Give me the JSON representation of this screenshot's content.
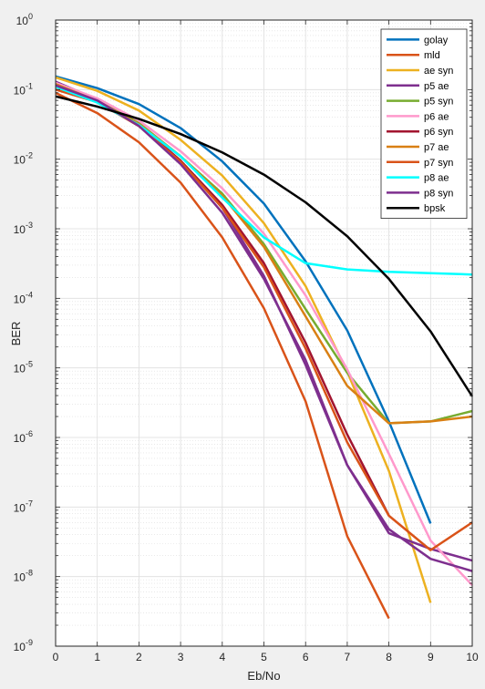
{
  "chart_data": {
    "type": "line",
    "xlabel": "Eb/No",
    "ylabel": "BER",
    "xlim": [
      0,
      10
    ],
    "ylim": [
      1e-09,
      1
    ],
    "yscale": "log",
    "grid": true,
    "minor_grid": true,
    "legend_position": "top-right",
    "x_ticks": [
      0,
      1,
      2,
      3,
      4,
      5,
      6,
      7,
      8,
      9,
      10
    ],
    "y_ticks": [
      {
        "exp": -9,
        "base": "10",
        "pow": "-9"
      },
      {
        "exp": -8,
        "base": "10",
        "pow": "-8"
      },
      {
        "exp": -7,
        "base": "10",
        "pow": "-7"
      },
      {
        "exp": -6,
        "base": "10",
        "pow": "-6"
      },
      {
        "exp": -5,
        "base": "10",
        "pow": "-5"
      },
      {
        "exp": -4,
        "base": "10",
        "pow": "-4"
      },
      {
        "exp": -3,
        "base": "10",
        "pow": "-3"
      },
      {
        "exp": -2,
        "base": "10",
        "pow": "-2"
      },
      {
        "exp": -1,
        "base": "10",
        "pow": "-1"
      },
      {
        "exp": 0,
        "base": "10",
        "pow": "0"
      }
    ],
    "series": [
      {
        "name": "golay",
        "color": "#0072bd",
        "x": [
          0,
          1,
          2,
          3,
          4,
          5,
          6,
          7,
          8,
          9
        ],
        "y": [
          0.155,
          0.105,
          0.062,
          0.028,
          0.0093,
          0.0023,
          0.00034,
          3.45e-05,
          1.7e-06,
          5.8e-08
        ]
      },
      {
        "name": "mld",
        "color": "#d95319",
        "x": [
          0,
          1,
          2,
          3,
          4,
          5,
          6,
          7,
          8
        ],
        "y": [
          0.09,
          0.046,
          0.0175,
          0.0046,
          0.00075,
          7.2e-05,
          3.3e-06,
          3.8e-08,
          2.5e-09
        ]
      },
      {
        "name": "ae syn",
        "color": "#edb120",
        "x": [
          0,
          1,
          2,
          3,
          4,
          5,
          6,
          7,
          8,
          9
        ],
        "y": [
          0.15,
          0.096,
          0.05,
          0.019,
          0.0058,
          0.0012,
          0.00015,
          8.8e-06,
          3.3e-07,
          4.2e-09
        ]
      },
      {
        "name": "p5 ae",
        "color": "#7e2f8e",
        "x": [
          0,
          1,
          2,
          3,
          4,
          5,
          6,
          7,
          8,
          9,
          10
        ],
        "y": [
          0.13,
          0.072,
          0.032,
          0.0095,
          0.002,
          0.00021,
          1.1e-05,
          4e-07,
          4.2e-08,
          2.5e-08,
          1.7e-08
        ]
      },
      {
        "name": "p5 syn",
        "color": "#77ac30",
        "x": [
          0,
          1,
          2,
          3,
          4,
          5,
          6,
          7,
          8,
          9,
          10
        ],
        "y": [
          0.12,
          0.07,
          0.033,
          0.011,
          0.0032,
          0.0006,
          7e-05,
          8.5e-06,
          1.6e-06,
          1.7e-06,
          2.4e-06
        ]
      },
      {
        "name": "p6 ae",
        "color": "#ff99cc",
        "x": [
          0,
          1,
          2,
          3,
          4,
          5,
          6,
          7,
          8,
          9,
          10
        ],
        "y": [
          0.125,
          0.075,
          0.036,
          0.013,
          0.0038,
          0.00085,
          0.00011,
          9.5e-06,
          5.8e-07,
          3.3e-08,
          7.5e-09
        ]
      },
      {
        "name": "p6 syn",
        "color": "#a2142f",
        "x": [
          0,
          1,
          2,
          3,
          4,
          5,
          6,
          7,
          8
        ],
        "y": [
          0.11,
          0.068,
          0.03,
          0.0095,
          0.0022,
          0.00032,
          2.3e-05,
          1.1e-06,
          7.5e-08
        ]
      },
      {
        "name": "p7 ae",
        "color": "#d98014",
        "x": [
          0,
          1,
          2,
          3,
          4,
          5,
          6,
          7,
          8,
          9,
          10
        ],
        "y": [
          0.12,
          0.069,
          0.032,
          0.011,
          0.003,
          0.00055,
          5.5e-05,
          5.5e-06,
          1.6e-06,
          1.7e-06,
          2e-06
        ]
      },
      {
        "name": "p7 syn",
        "color": "#d95319",
        "x": [
          0,
          1,
          2,
          3,
          4,
          5,
          6,
          7,
          8,
          9,
          10
        ],
        "y": [
          0.1,
          0.066,
          0.03,
          0.0092,
          0.002,
          0.00028,
          1.9e-05,
          8.5e-07,
          7.5e-08,
          2.4e-08,
          6e-08
        ]
      },
      {
        "name": "p8 ae",
        "color": "#00ffff",
        "x": [
          0,
          1,
          2,
          3,
          4,
          5,
          6,
          7,
          8,
          9,
          10
        ],
        "y": [
          0.11,
          0.065,
          0.031,
          0.011,
          0.0028,
          0.00075,
          0.00032,
          0.00026,
          0.00024,
          0.00023,
          0.00022
        ]
      },
      {
        "name": "p8 syn",
        "color": "#7e2f8e",
        "x": [
          0,
          1,
          2,
          3,
          4,
          5,
          6,
          7,
          8,
          9,
          10
        ],
        "y": [
          0.115,
          0.07,
          0.03,
          0.0085,
          0.0017,
          0.00019,
          1.3e-05,
          4e-07,
          4.8e-08,
          1.8e-08,
          1.2e-08
        ]
      },
      {
        "name": "bpsk",
        "color": "#000000",
        "x": [
          0,
          1,
          2,
          3,
          4,
          5,
          6,
          7,
          8,
          9,
          10
        ],
        "y": [
          0.08,
          0.057,
          0.038,
          0.023,
          0.0125,
          0.006,
          0.0024,
          0.00078,
          0.00019,
          3.35e-05,
          3.9e-06
        ]
      }
    ]
  }
}
